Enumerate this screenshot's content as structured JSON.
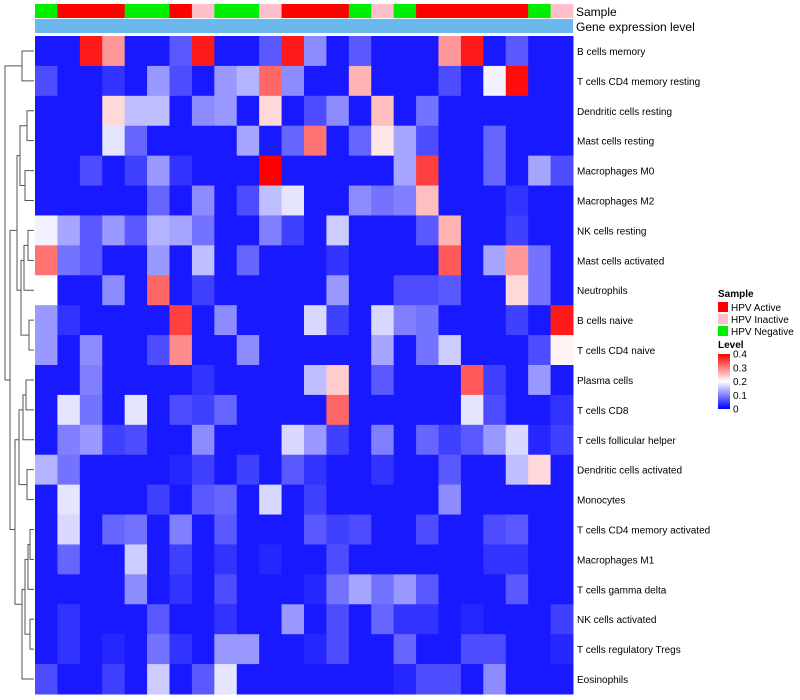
{
  "chart_data": {
    "type": "heatmap",
    "annotation_tracks": [
      "Sample",
      "Gene expression level"
    ],
    "legend": {
      "sample_title": "Sample",
      "sample_entries": [
        {
          "label": "HPV Active",
          "color": "#ff0000"
        },
        {
          "label": "HPV Inactive",
          "color": "#ffc0cb"
        },
        {
          "label": "HPV Negative",
          "color": "#00ee00"
        }
      ],
      "level_title": "Level",
      "level_ticks": [
        "0.4",
        "0.3",
        "0.2",
        "0.1",
        "0"
      ],
      "level_tick_values": [
        0.4,
        0.3,
        0.2,
        0.1,
        0
      ],
      "level_range": [
        0,
        0.4
      ]
    },
    "sample_groups": [
      "HPV Negative",
      "HPV Active",
      "HPV Active",
      "HPV Active",
      "HPV Negative",
      "HPV Negative",
      "HPV Active",
      "HPV Inactive",
      "HPV Negative",
      "HPV Negative",
      "HPV Inactive",
      "HPV Active",
      "HPV Active",
      "HPV Active",
      "HPV Negative",
      "HPV Inactive",
      "HPV Negative",
      "HPV Active",
      "HPV Active",
      "HPV Active",
      "HPV Active",
      "HPV Active",
      "HPV Negative",
      "HPV Inactive"
    ],
    "expression_level_colors": [
      "#6ab8ec",
      "#6ab8ec",
      "#6ab8ec",
      "#6ab8ec",
      "#6ab8ec",
      "#6ab8ec",
      "#6ab8ec",
      "#6ab8ec",
      "#6ab8ec",
      "#6ab8ec",
      "#6ab8ec",
      "#6ab8ec",
      "#6ab8ec",
      "#6ab8ec",
      "#6ab8ec",
      "#6ab8ec",
      "#6ab8ec",
      "#6ab8ec",
      "#6ab8ec",
      "#6ab8ec",
      "#6ab8ec",
      "#6ab8ec",
      "#6ab8ec",
      "#6ab8ec"
    ],
    "rows": [
      "B cells memory",
      "T cells CD4 memory resting",
      "Dendritic cells resting",
      "Mast cells resting",
      "Macrophages M0",
      "Macrophages M2",
      "NK cells resting",
      "Mast cells activated",
      "Neutrophils",
      "B cells naive",
      "T cells CD4 naive",
      "Plasma cells",
      "T cells CD8",
      "T cells follicular helper",
      "Dendritic cells activated",
      "Monocytes",
      "T cells CD4 memory activated",
      "Macrophages M1",
      "T cells gamma delta",
      "NK cells activated",
      "T cells regulatory  Tregs",
      "Eosinophils"
    ],
    "values": [
      [
        0.02,
        0.02,
        0.38,
        0.28,
        0.02,
        0.02,
        0.07,
        0.38,
        0.02,
        0.02,
        0.07,
        0.38,
        0.11,
        0.02,
        0.07,
        0.02,
        0.02,
        0.02,
        0.28,
        0.38,
        0.02,
        0.07,
        0.02,
        0.02
      ],
      [
        0.06,
        0.02,
        0.02,
        0.04,
        0.02,
        0.12,
        0.06,
        0.02,
        0.12,
        0.14,
        0.32,
        0.11,
        0.02,
        0.02,
        0.26,
        0.02,
        0.02,
        0.02,
        0.06,
        0.02,
        0.19,
        0.39,
        0.02,
        0.02
      ],
      [
        0.02,
        0.02,
        0.02,
        0.23,
        0.15,
        0.15,
        0.02,
        0.11,
        0.12,
        0.02,
        0.23,
        0.02,
        0.06,
        0.11,
        0.02,
        0.25,
        0.02,
        0.09,
        0.02,
        0.02,
        0.02,
        0.02,
        0.02,
        0.02
      ],
      [
        0.02,
        0.02,
        0.02,
        0.18,
        0.08,
        0.02,
        0.02,
        0.02,
        0.02,
        0.13,
        0.02,
        0.08,
        0.31,
        0.02,
        0.08,
        0.22,
        0.13,
        0.06,
        0.02,
        0.02,
        0.08,
        0.02,
        0.02,
        0.02
      ],
      [
        0.02,
        0.02,
        0.06,
        0.02,
        0.05,
        0.12,
        0.04,
        0.02,
        0.02,
        0.02,
        0.4,
        0.02,
        0.02,
        0.02,
        0.02,
        0.02,
        0.13,
        0.35,
        0.02,
        0.02,
        0.08,
        0.02,
        0.13,
        0.06
      ],
      [
        0.02,
        0.02,
        0.02,
        0.02,
        0.02,
        0.08,
        0.02,
        0.11,
        0.02,
        0.06,
        0.15,
        0.18,
        0.02,
        0.02,
        0.11,
        0.09,
        0.1,
        0.25,
        0.02,
        0.02,
        0.02,
        0.04,
        0.02,
        0.02
      ],
      [
        0.19,
        0.13,
        0.07,
        0.12,
        0.07,
        0.14,
        0.13,
        0.09,
        0.02,
        0.02,
        0.1,
        0.05,
        0.02,
        0.16,
        0.02,
        0.02,
        0.02,
        0.07,
        0.26,
        0.02,
        0.02,
        0.05,
        0.02,
        0.02
      ],
      [
        0.31,
        0.09,
        0.07,
        0.02,
        0.02,
        0.12,
        0.02,
        0.15,
        0.02,
        0.08,
        0.02,
        0.02,
        0.02,
        0.04,
        0.02,
        0.02,
        0.02,
        0.02,
        0.33,
        0.02,
        0.13,
        0.28,
        0.09,
        0.02
      ],
      [
        0.2,
        0.02,
        0.02,
        0.11,
        0.02,
        0.32,
        0.02,
        0.05,
        0.02,
        0.02,
        0.02,
        0.02,
        0.02,
        0.12,
        0.02,
        0.02,
        0.06,
        0.06,
        0.07,
        0.02,
        0.02,
        0.23,
        0.09,
        0.02
      ],
      [
        0.12,
        0.04,
        0.02,
        0.02,
        0.02,
        0.02,
        0.35,
        0.02,
        0.11,
        0.02,
        0.02,
        0.02,
        0.17,
        0.05,
        0.02,
        0.17,
        0.1,
        0.09,
        0.02,
        0.02,
        0.02,
        0.05,
        0.02,
        0.38
      ],
      [
        0.12,
        0.02,
        0.11,
        0.02,
        0.02,
        0.06,
        0.29,
        0.02,
        0.02,
        0.11,
        0.02,
        0.02,
        0.02,
        0.02,
        0.02,
        0.13,
        0.02,
        0.09,
        0.16,
        0.02,
        0.02,
        0.02,
        0.06,
        0.21
      ],
      [
        0.02,
        0.02,
        0.1,
        0.02,
        0.02,
        0.02,
        0.02,
        0.04,
        0.02,
        0.02,
        0.02,
        0.02,
        0.15,
        0.24,
        0.02,
        0.07,
        0.02,
        0.02,
        0.02,
        0.33,
        0.05,
        0.02,
        0.12,
        0.02
      ],
      [
        0.02,
        0.18,
        0.09,
        0.02,
        0.18,
        0.02,
        0.06,
        0.05,
        0.08,
        0.02,
        0.02,
        0.02,
        0.02,
        0.32,
        0.02,
        0.02,
        0.02,
        0.02,
        0.02,
        0.18,
        0.06,
        0.02,
        0.02,
        0.04
      ],
      [
        0.02,
        0.1,
        0.12,
        0.05,
        0.06,
        0.02,
        0.02,
        0.11,
        0.02,
        0.02,
        0.02,
        0.17,
        0.12,
        0.05,
        0.02,
        0.1,
        0.02,
        0.08,
        0.05,
        0.07,
        0.12,
        0.17,
        0.03,
        0.05
      ],
      [
        0.14,
        0.09,
        0.02,
        0.02,
        0.02,
        0.02,
        0.03,
        0.05,
        0.02,
        0.05,
        0.02,
        0.07,
        0.04,
        0.02,
        0.02,
        0.04,
        0.02,
        0.02,
        0.07,
        0.02,
        0.02,
        0.15,
        0.23,
        0.02
      ],
      [
        0.02,
        0.18,
        0.02,
        0.02,
        0.02,
        0.05,
        0.02,
        0.07,
        0.08,
        0.02,
        0.17,
        0.02,
        0.05,
        0.02,
        0.02,
        0.02,
        0.02,
        0.02,
        0.11,
        0.02,
        0.02,
        0.02,
        0.02,
        0.02
      ],
      [
        0.02,
        0.17,
        0.02,
        0.08,
        0.09,
        0.02,
        0.1,
        0.02,
        0.07,
        0.02,
        0.02,
        0.02,
        0.07,
        0.05,
        0.06,
        0.02,
        0.02,
        0.06,
        0.02,
        0.02,
        0.06,
        0.07,
        0.02,
        0.02
      ],
      [
        0.02,
        0.08,
        0.02,
        0.02,
        0.16,
        0.02,
        0.05,
        0.02,
        0.04,
        0.02,
        0.03,
        0.02,
        0.02,
        0.06,
        0.02,
        0.02,
        0.02,
        0.02,
        0.02,
        0.02,
        0.04,
        0.04,
        0.02,
        0.02
      ],
      [
        0.02,
        0.02,
        0.02,
        0.02,
        0.11,
        0.02,
        0.04,
        0.02,
        0.06,
        0.02,
        0.02,
        0.02,
        0.03,
        0.09,
        0.13,
        0.09,
        0.12,
        0.07,
        0.02,
        0.02,
        0.02,
        0.07,
        0.02,
        0.02
      ],
      [
        0.02,
        0.04,
        0.02,
        0.02,
        0.02,
        0.07,
        0.02,
        0.02,
        0.04,
        0.02,
        0.02,
        0.12,
        0.02,
        0.06,
        0.02,
        0.08,
        0.04,
        0.04,
        0.02,
        0.03,
        0.02,
        0.02,
        0.02,
        0.05
      ],
      [
        0.02,
        0.04,
        0.02,
        0.03,
        0.02,
        0.09,
        0.04,
        0.02,
        0.12,
        0.12,
        0.02,
        0.02,
        0.03,
        0.06,
        0.02,
        0.02,
        0.08,
        0.02,
        0.02,
        0.06,
        0.06,
        0.02,
        0.02,
        0.03
      ],
      [
        0.06,
        0.02,
        0.02,
        0.05,
        0.02,
        0.16,
        0.02,
        0.07,
        0.18,
        0.02,
        0.02,
        0.02,
        0.02,
        0.02,
        0.02,
        0.02,
        0.03,
        0.06,
        0.06,
        0.02,
        0.11,
        0.02,
        0.02,
        0.02
      ]
    ]
  }
}
